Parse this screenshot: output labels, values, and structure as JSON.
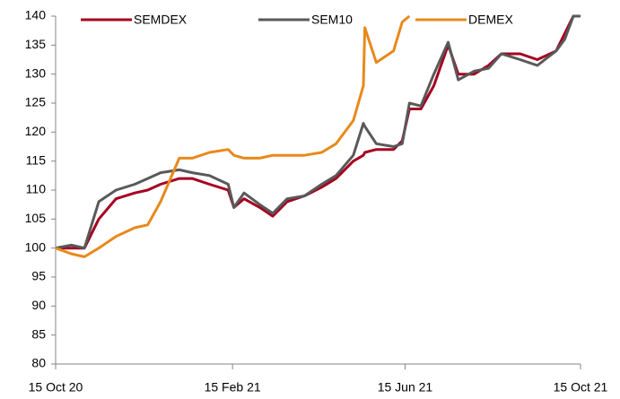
{
  "chart_data": {
    "type": "line",
    "x": [
      "2020-10-15",
      "2020-10-26",
      "2020-11-04",
      "2020-11-14",
      "2020-11-26",
      "2020-12-09",
      "2020-12-18",
      "2020-12-27",
      "2021-01-09",
      "2021-01-18",
      "2021-01-30",
      "2021-02-12",
      "2021-02-16",
      "2021-02-23",
      "2021-03-06",
      "2021-03-15",
      "2021-03-25",
      "2021-04-06",
      "2021-04-18",
      "2021-04-28",
      "2021-05-10",
      "2021-05-17",
      "2021-05-18",
      "2021-05-26",
      "2021-06-07",
      "2021-06-13",
      "2021-06-18",
      "2021-06-26",
      "2021-07-05",
      "2021-07-15",
      "2021-07-22",
      "2021-08-02",
      "2021-08-12",
      "2021-08-21",
      "2021-09-03",
      "2021-09-15",
      "2021-09-28",
      "2021-10-04",
      "2021-10-10",
      "2021-10-15"
    ],
    "series": [
      {
        "name": "SEMDEX",
        "color": "#a50021",
        "values": [
          100,
          100,
          100,
          105,
          108.5,
          109.5,
          110,
          111,
          112,
          112,
          111,
          110,
          107,
          108.5,
          107,
          105.5,
          108,
          109,
          110.5,
          112,
          115,
          116,
          116.5,
          117,
          117,
          118.5,
          124,
          124,
          128,
          135,
          130,
          130,
          131.5,
          133.5,
          133.5,
          132.5,
          134,
          137,
          140,
          140
        ]
      },
      {
        "name": "SEM10",
        "color": "#595959",
        "values": [
          100,
          100.5,
          100,
          108,
          110,
          111,
          112,
          113,
          113.5,
          113,
          112.5,
          111,
          107,
          109.5,
          107.5,
          106,
          108.5,
          109,
          111,
          112.5,
          116,
          121.5,
          121,
          118,
          117.5,
          118,
          125,
          124.5,
          130,
          135.5,
          129,
          130.5,
          131,
          133.5,
          132.5,
          131.5,
          134,
          136,
          140,
          140
        ]
      },
      {
        "name": "DEMEX",
        "color": "#e8891c",
        "values": [
          100,
          99,
          98.5,
          100,
          102,
          103.5,
          104,
          108,
          115.5,
          115.5,
          116.5,
          117,
          116,
          115.5,
          115.5,
          116,
          116,
          116,
          116.5,
          118,
          122,
          128,
          138,
          132,
          134,
          139,
          140,
          null,
          null,
          null,
          null,
          null,
          null,
          null,
          null,
          null,
          null,
          null,
          null,
          null
        ]
      }
    ],
    "xlim": [
      "2020-10-15",
      "2021-10-15"
    ],
    "xticks": [
      {
        "value": "2020-10-15",
        "label": "15 Oct 20"
      },
      {
        "value": "2021-02-15",
        "label": "15 Feb 21"
      },
      {
        "value": "2021-06-15",
        "label": "15 Jun 21"
      },
      {
        "value": "2021-10-15",
        "label": "15 Oct 21"
      }
    ],
    "ylim": [
      80,
      140
    ],
    "yticks": [
      80,
      85,
      90,
      95,
      100,
      105,
      110,
      115,
      120,
      125,
      130,
      135,
      140
    ],
    "legend": "top",
    "grid": false
  }
}
